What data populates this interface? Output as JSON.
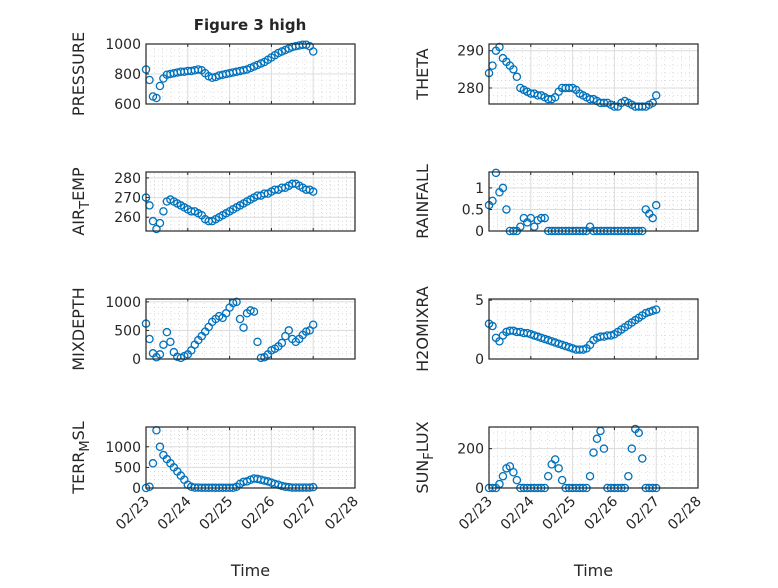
{
  "figure": {
    "title": "Figure 3 high",
    "marker_color": "#0072BD"
  },
  "chart_data": [
    {
      "type": "scatter",
      "id": "pressure",
      "title": "Figure 3 high",
      "xlabel": "",
      "ylabel": "PRESSURE",
      "ylim": [
        600,
        1000
      ],
      "yticks": [
        600,
        800,
        1000
      ],
      "ytick_labels": [
        "600",
        "800",
        "1000"
      ],
      "xlim": [
        0,
        5
      ],
      "xticks": [
        0,
        1,
        2,
        3,
        4,
        5
      ],
      "xtick_labels": [],
      "grid": true,
      "values": [
        830,
        760,
        650,
        640,
        720,
        770,
        795,
        800,
        805,
        810,
        815,
        815,
        820,
        820,
        825,
        830,
        825,
        805,
        785,
        775,
        780,
        790,
        795,
        800,
        805,
        810,
        815,
        820,
        825,
        830,
        840,
        850,
        860,
        870,
        880,
        895,
        910,
        925,
        940,
        950,
        960,
        970,
        980,
        985,
        990,
        995,
        995,
        985,
        950
      ]
    },
    {
      "type": "scatter",
      "id": "theta",
      "xlabel": "",
      "ylabel": "THETA",
      "ylim": [
        275.7,
        291.8
      ],
      "yticks": [
        280,
        290
      ],
      "ytick_labels": [
        "280",
        "290"
      ],
      "xlim": [
        0,
        5
      ],
      "xticks": [
        0,
        1,
        2,
        3,
        4,
        5
      ],
      "xtick_labels": [],
      "grid": true,
      "values": [
        284,
        286,
        290,
        291,
        288,
        287,
        286,
        285,
        283,
        280,
        279.5,
        279,
        278.5,
        278.5,
        278,
        278,
        277.5,
        277,
        277,
        277.5,
        279,
        280,
        280,
        280,
        280,
        279.5,
        278.5,
        278,
        277.5,
        277,
        277,
        276.5,
        276,
        276,
        276,
        275.5,
        275,
        275,
        276,
        276.5,
        276,
        275.5,
        275,
        275,
        275,
        275,
        275.5,
        276,
        278
      ]
    },
    {
      "type": "scatter",
      "id": "air_temp",
      "xlabel": "",
      "ylabel": "AIR_TEMP",
      "ylim": [
        253,
        283
      ],
      "yticks": [
        260,
        270,
        280
      ],
      "ytick_labels": [
        "260",
        "270",
        "280"
      ],
      "xlim": [
        0,
        5
      ],
      "xticks": [
        0,
        1,
        2,
        3,
        4,
        5
      ],
      "xtick_labels": [],
      "grid": true,
      "values": [
        270,
        266,
        258,
        254,
        257,
        263,
        268,
        269,
        268,
        267,
        266,
        265,
        264,
        263,
        263,
        262,
        261,
        259,
        258,
        258,
        259,
        260,
        261,
        262,
        263,
        264,
        265,
        266,
        267,
        268,
        269,
        270,
        271,
        271,
        272,
        272,
        273,
        274,
        274,
        275,
        275,
        276,
        277,
        277,
        276,
        275,
        274,
        274,
        273
      ]
    },
    {
      "type": "scatter",
      "id": "rainfall",
      "xlabel": "",
      "ylabel": "RAINFALL",
      "ylim": [
        0,
        1.37
      ],
      "yticks": [
        0,
        0.5,
        1
      ],
      "ytick_labels": [
        "0",
        "0.5",
        "1"
      ],
      "xlim": [
        0,
        5
      ],
      "xticks": [
        0,
        1,
        2,
        3,
        4,
        5
      ],
      "xtick_labels": [],
      "grid": true,
      "values": [
        0.6,
        0.7,
        1.35,
        0.9,
        1.0,
        0.5,
        0,
        0,
        0,
        0.1,
        0.3,
        0.2,
        0.3,
        0.1,
        0.25,
        0.3,
        0.3,
        0,
        0,
        0,
        0,
        0,
        0,
        0,
        0,
        0,
        0,
        0,
        0,
        0.1,
        0,
        0,
        0,
        0,
        0,
        0,
        0,
        0,
        0,
        0,
        0,
        0,
        0,
        0,
        0,
        0.5,
        0.4,
        0.3,
        0.6
      ]
    },
    {
      "type": "scatter",
      "id": "mixdepth",
      "xlabel": "",
      "ylabel": "MIXDEPTH",
      "ylim": [
        0,
        1050
      ],
      "yticks": [
        0,
        500,
        1000
      ],
      "ytick_labels": [
        "0",
        "500",
        "1000"
      ],
      "xlim": [
        0,
        5
      ],
      "xticks": [
        0,
        1,
        2,
        3,
        4,
        5
      ],
      "xtick_labels": [],
      "grid": true,
      "values": [
        620,
        350,
        100,
        30,
        80,
        250,
        470,
        300,
        120,
        40,
        20,
        50,
        80,
        150,
        250,
        330,
        400,
        480,
        560,
        650,
        700,
        750,
        720,
        800,
        900,
        980,
        1000,
        700,
        550,
        800,
        850,
        830,
        300,
        20,
        30,
        80,
        150,
        180,
        220,
        280,
        400,
        500,
        350,
        300,
        350,
        420,
        480,
        500,
        600
      ]
    },
    {
      "type": "scatter",
      "id": "h2omixra",
      "xlabel": "",
      "ylabel": "H2OMIXRA",
      "ylim": [
        0,
        5.1
      ],
      "yticks": [
        0,
        5
      ],
      "ytick_labels": [
        "0",
        "5"
      ],
      "xlim": [
        0,
        5
      ],
      "xticks": [
        0,
        1,
        2,
        3,
        4,
        5
      ],
      "xtick_labels": [],
      "grid": true,
      "values": [
        3,
        2.8,
        1.8,
        1.5,
        2,
        2.3,
        2.4,
        2.4,
        2.3,
        2.3,
        2.2,
        2.2,
        2.1,
        2.0,
        1.9,
        1.8,
        1.7,
        1.6,
        1.5,
        1.4,
        1.3,
        1.2,
        1.1,
        1.0,
        0.9,
        0.8,
        0.8,
        0.8,
        0.9,
        1.2,
        1.6,
        1.8,
        1.9,
        1.9,
        2.0,
        2.0,
        2.1,
        2.3,
        2.5,
        2.7,
        2.9,
        3.1,
        3.3,
        3.5,
        3.7,
        3.9,
        4.0,
        4.1,
        4.2
      ]
    },
    {
      "type": "scatter",
      "id": "terr_msl",
      "xlabel": "Time",
      "ylabel": "TERR_MSL",
      "ylim": [
        0,
        1480
      ],
      "yticks": [
        0,
        500,
        1000
      ],
      "ytick_labels": [
        "0",
        "500",
        "1000"
      ],
      "xlim": [
        0,
        5
      ],
      "xticks": [
        0,
        1,
        2,
        3,
        4,
        5
      ],
      "xtick_labels": [
        "02/23",
        "02/24",
        "02/25",
        "02/26",
        "02/27",
        "02/28"
      ],
      "grid": true,
      "values": [
        0,
        30,
        600,
        1400,
        1000,
        800,
        700,
        600,
        500,
        400,
        300,
        200,
        80,
        30,
        10,
        10,
        5,
        5,
        5,
        5,
        5,
        5,
        5,
        5,
        5,
        5,
        30,
        100,
        150,
        160,
        200,
        230,
        220,
        200,
        180,
        160,
        130,
        100,
        80,
        50,
        30,
        20,
        10,
        10,
        10,
        10,
        10,
        10,
        20
      ]
    },
    {
      "type": "scatter",
      "id": "sun_flux",
      "xlabel": "Time",
      "ylabel": "SUN_FLUX",
      "ylim": [
        0,
        310
      ],
      "yticks": [
        0,
        200
      ],
      "ytick_labels": [
        "0",
        "200"
      ],
      "xlim": [
        0,
        5
      ],
      "xticks": [
        0,
        1,
        2,
        3,
        4,
        5
      ],
      "xtick_labels": [
        "02/23",
        "02/24",
        "02/25",
        "02/26",
        "02/27",
        "02/28"
      ],
      "grid": true,
      "values": [
        0,
        0,
        0,
        20,
        60,
        100,
        110,
        80,
        40,
        0,
        0,
        0,
        0,
        0,
        0,
        0,
        0,
        60,
        120,
        145,
        100,
        40,
        0,
        0,
        0,
        0,
        0,
        0,
        0,
        60,
        180,
        250,
        290,
        200,
        0,
        0,
        0,
        0,
        0,
        0,
        60,
        200,
        300,
        280,
        150,
        0,
        0,
        0,
        0
      ]
    }
  ],
  "x_step_days": 0.0833333
}
